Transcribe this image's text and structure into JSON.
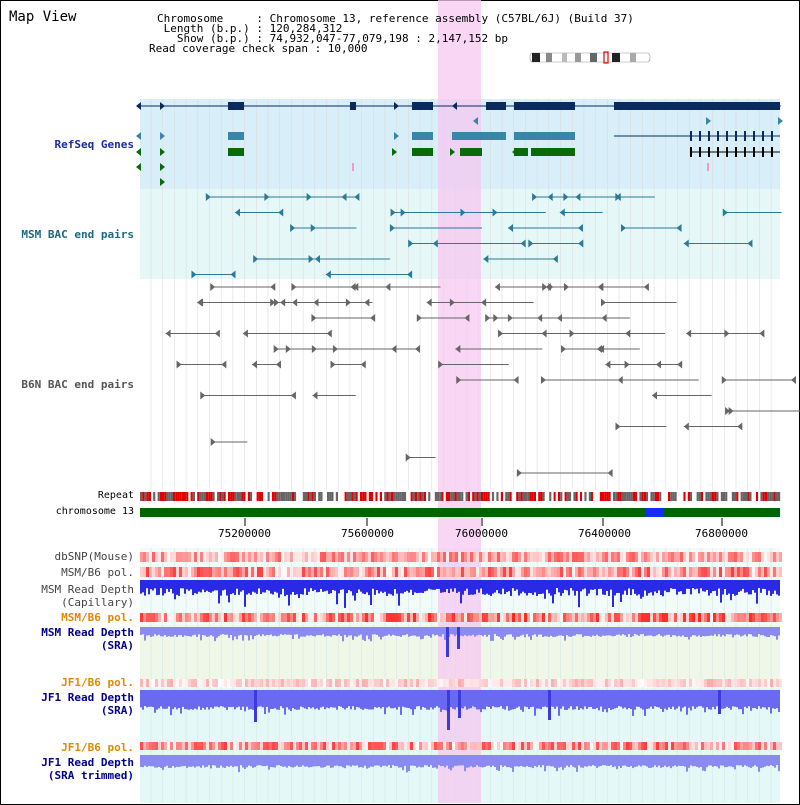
{
  "header": {
    "title": "Map View",
    "info_lines": [
      "Chromosome     : Chromosome 13, reference assembly (C57BL/6J) (Build 37)",
      " Length (b.p.) : 120,284,312",
      "   Show (b.p.) : 74,932,047-77,079,198 : 2,147,152 bp",
      "Read coverage check span : 10,000"
    ]
  },
  "tracks": {
    "refseq": "RefSeq Genes",
    "msm_bac": "MSM BAC end pairs",
    "b6n_bac": "B6N BAC end pairs",
    "repeat": "Repeat",
    "chromosome": "chromosome 13"
  },
  "axis": {
    "ticks": [
      "75200000",
      "75600000",
      "76000000",
      "76400000",
      "76800000"
    ]
  },
  "lower_tracks": {
    "dbsnp": "dbSNP(Mouse)",
    "msm_b6_pol_1": "MSM/B6 pol.",
    "msm_depth_cap_1": "MSM Read Depth",
    "msm_depth_cap_2": "(Capillary)",
    "msm_b6_pol_2": "MSM/B6 pol.",
    "msm_depth_sra_1": "MSM Read Depth",
    "msm_depth_sra_2": "(SRA)",
    "jf1_b6_pol_1": "JF1/B6 pol.",
    "jf1_depth_sra_1": "JF1 Read Depth",
    "jf1_depth_sra_2": "(SRA)",
    "jf1_b6_pol_2": "JF1/B6 pol.",
    "jf1_depth_trim_1": "JF1 Read Depth",
    "jf1_depth_trim_2": "(SRA trimmed)"
  },
  "colors": {
    "refseq_label": "#1a2aa0",
    "msm_label": "#1a6a80",
    "pol_label": "#e08a00",
    "depth_label": "#00008b",
    "highlight": "#f5c8f0",
    "chromosome_bar": "#006400",
    "gene_dark": "#0a2a5e",
    "gene_mid": "#3a86a8",
    "gene_green": "#0a6a0a"
  }
}
